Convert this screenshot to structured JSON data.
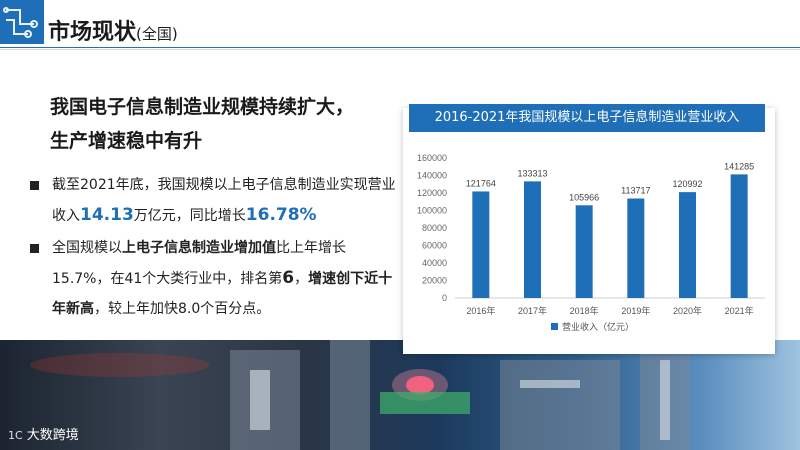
{
  "header": {
    "title": "市场现状",
    "title_suffix": "(全国)"
  },
  "headline": {
    "line1": "我国电子信息制造业规模持续扩大，",
    "line2": "生产增速稳中有升"
  },
  "bullet1": {
    "part1": "截至2021年底，我国规模以上电子信息制造业实现营业收入",
    "revenue": "14.13",
    "part2": "万亿元，同比增长",
    "growth": "16.78%"
  },
  "bullet2": {
    "part1": "全国规模以",
    "part2_bold": "上电子信息制造业增加值",
    "part3": "比上年增长15.7%，在41个大类行业中，排名第",
    "rank": "6",
    "part4": "，",
    "part5_bold": "增速创下近十年新高",
    "part6": "，较上年加快8.0个百分点。"
  },
  "footer": {
    "mark": "1C",
    "brand": "大数跨境"
  },
  "colors": {
    "accent": "#1f6fb8",
    "bar": "#1f6fb8"
  },
  "chart_data": {
    "type": "bar",
    "title": "2016-2021年我国规模以上电子信息制造业营业收入",
    "categories": [
      "2016年",
      "2017年",
      "2018年",
      "2019年",
      "2020年",
      "2021年"
    ],
    "series": [
      {
        "name": "营业收入（亿元）",
        "values": [
          121764,
          133313,
          105966,
          113717,
          120992,
          141285
        ]
      }
    ],
    "data_labels": [
      "121764",
      "133313",
      "105966",
      "113717",
      "120992",
      "141285"
    ],
    "yticks": [
      0,
      20000,
      40000,
      60000,
      80000,
      100000,
      120000,
      140000,
      160000
    ],
    "ylim": [
      0,
      160000
    ],
    "grid": false,
    "legend": "bottom"
  }
}
